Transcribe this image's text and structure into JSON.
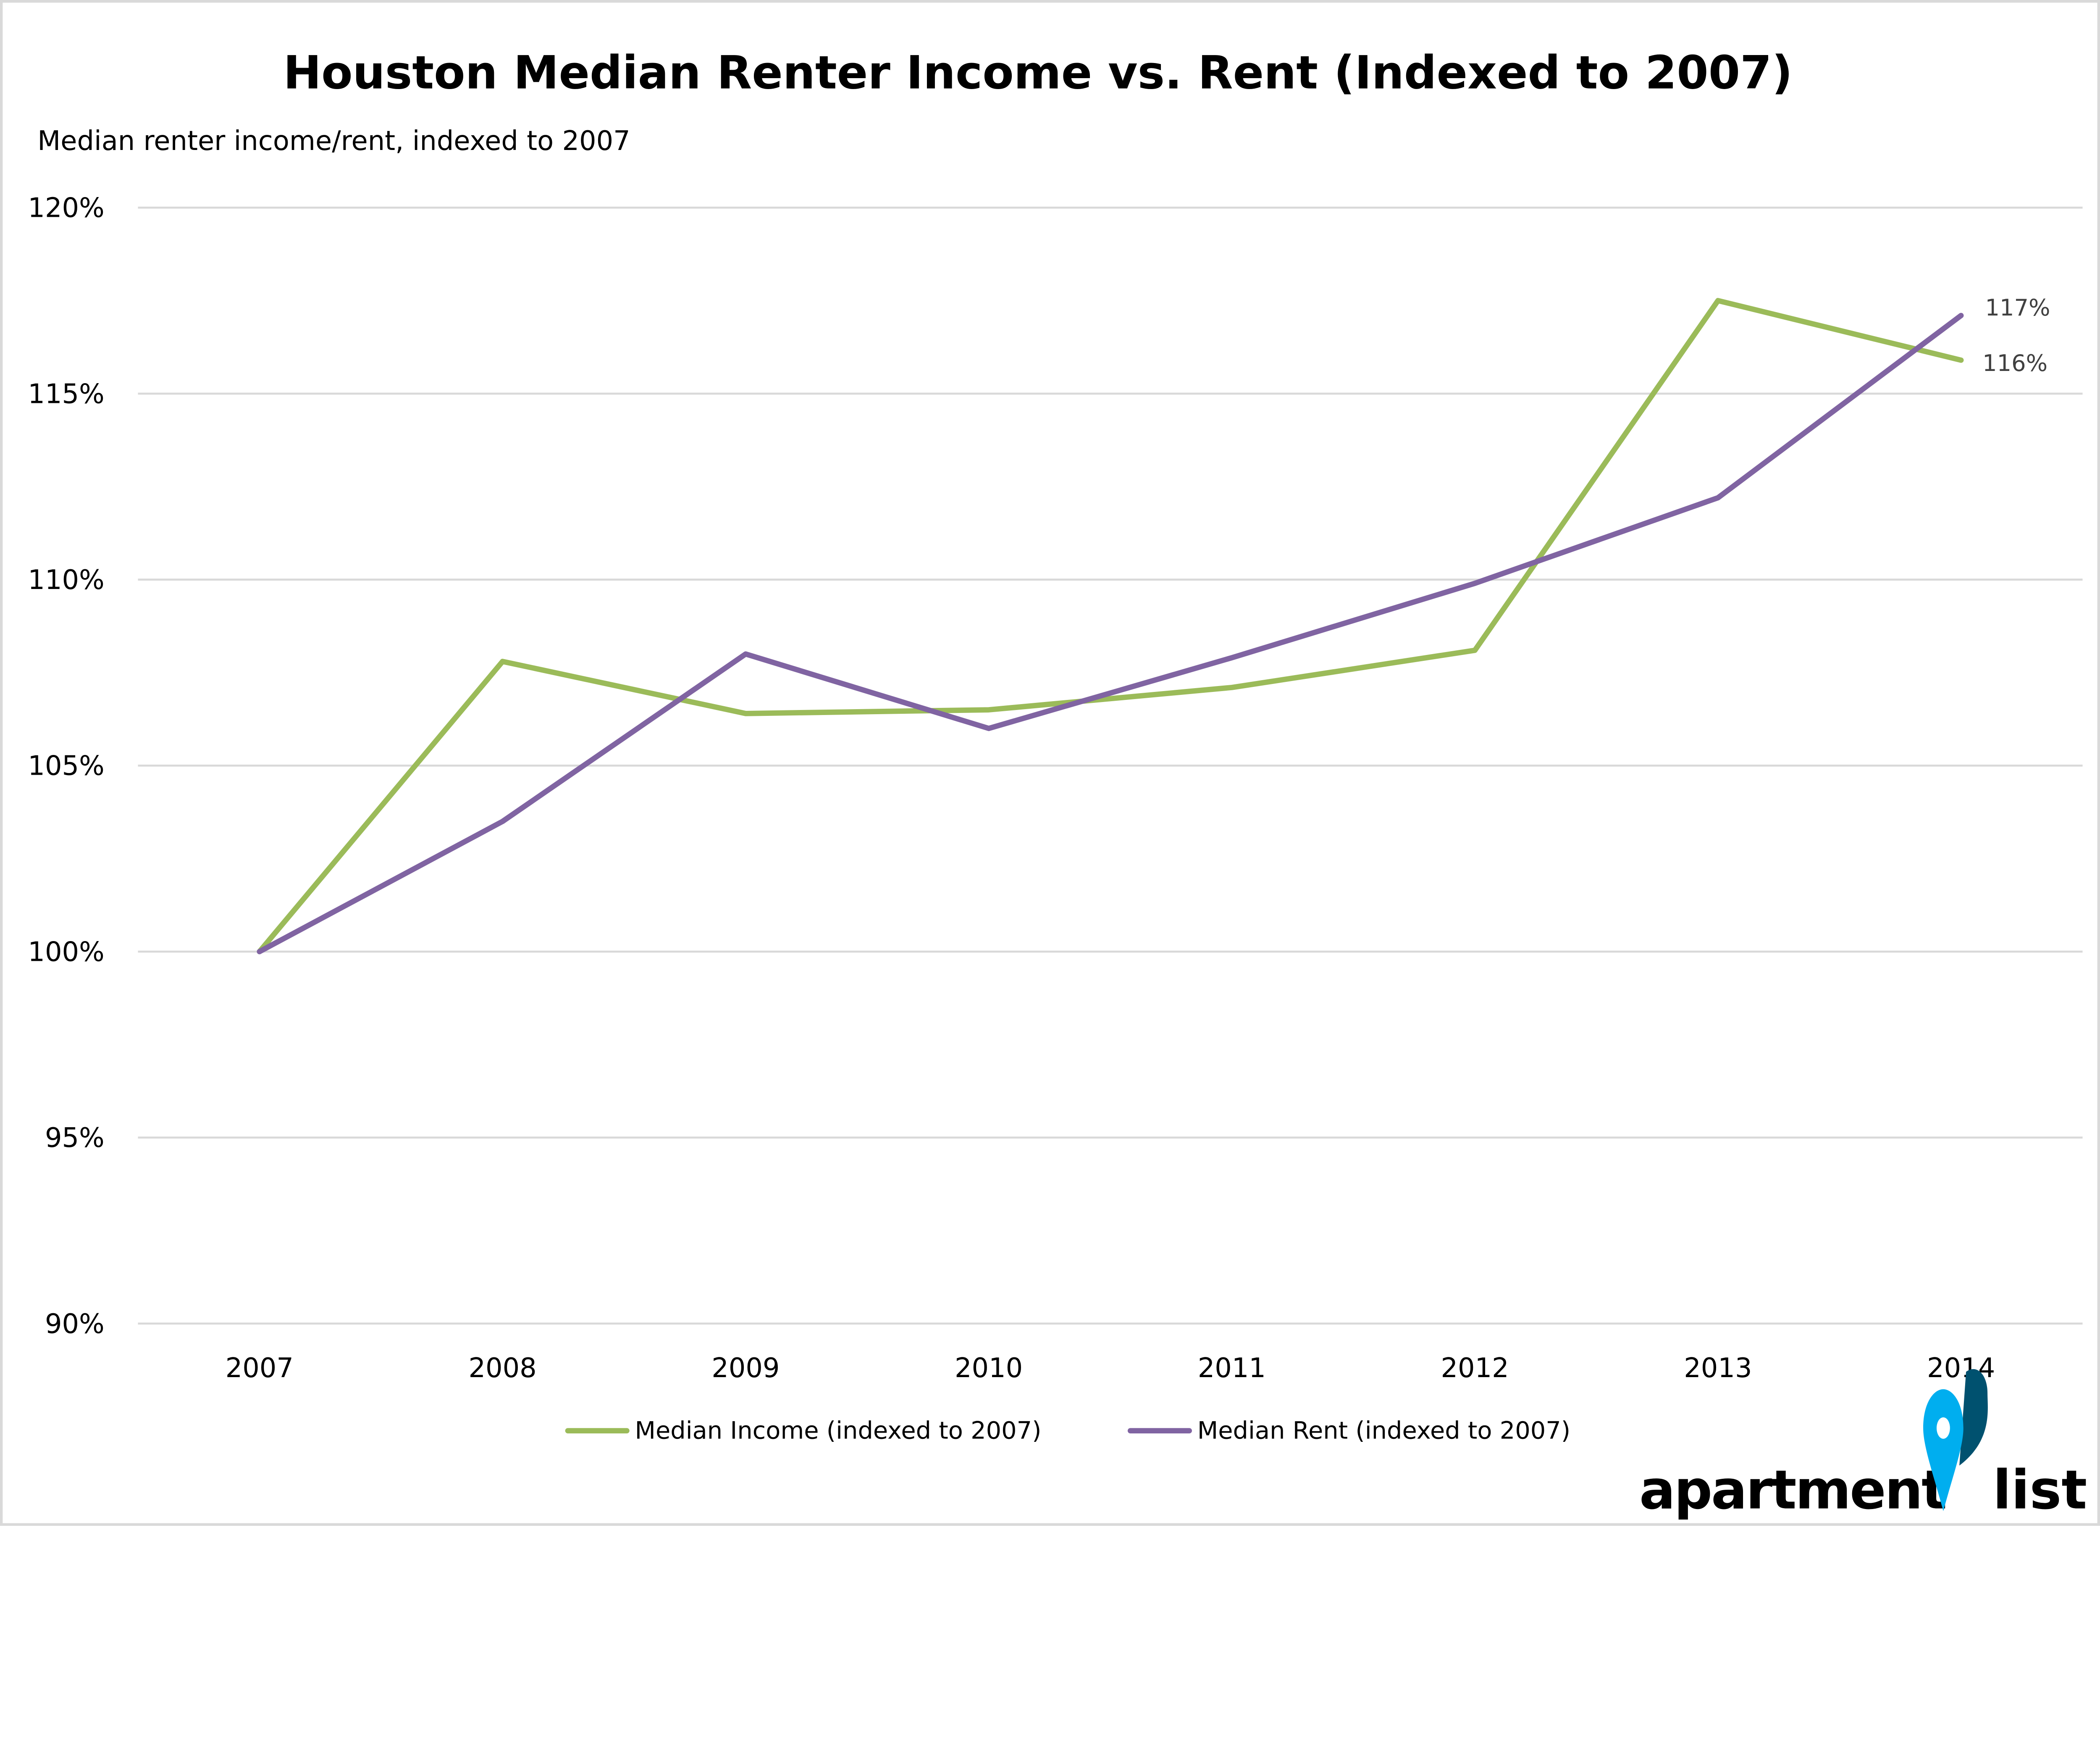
{
  "chart_data": {
    "type": "line",
    "title": "Houston Median Renter Income vs. Rent (Indexed to 2007)",
    "ylabel": "Median renter income/rent, indexed to 2007",
    "xlabel": "",
    "categories": [
      "2007",
      "2008",
      "2009",
      "2010",
      "2011",
      "2012",
      "2013",
      "2014"
    ],
    "ylim": [
      90,
      120
    ],
    "yticks": [
      90,
      95,
      100,
      105,
      110,
      115,
      120
    ],
    "ytick_labels": [
      "90%",
      "95%",
      "100%",
      "105%",
      "110%",
      "115%",
      "120%"
    ],
    "grid": true,
    "legend_placement": "bottom",
    "series": [
      {
        "name": "Median Income (indexed to 2007)",
        "color": "#9BBB59",
        "values": [
          100,
          107.8,
          106.4,
          106.5,
          107.1,
          108.1,
          117.5,
          115.9
        ],
        "end_label": "116%"
      },
      {
        "name": "Median Rent (indexed to 2007)",
        "color": "#8064A2",
        "values": [
          100,
          103.5,
          108.0,
          106.0,
          107.9,
          109.9,
          112.2,
          117.1
        ],
        "end_label": "117%"
      }
    ]
  },
  "logo": {
    "text_left": "apartment",
    "text_right": "list",
    "pin_colors": [
      "#00AEEF",
      "#00516F"
    ]
  }
}
